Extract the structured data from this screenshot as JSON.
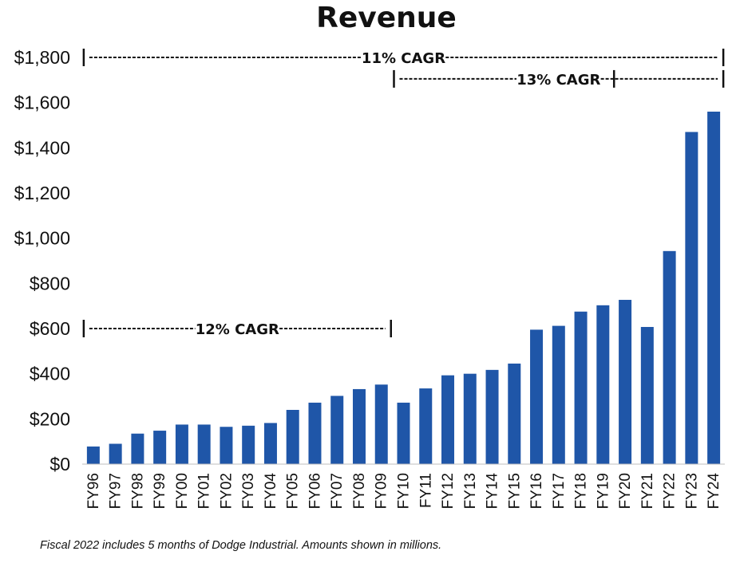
{
  "chart_data": {
    "type": "bar",
    "title": "Revenue",
    "xlabel": "",
    "ylabel": "",
    "ylim": [
      0,
      1800
    ],
    "yticks": [
      0,
      200,
      400,
      600,
      800,
      1000,
      1200,
      1400,
      1600,
      1800
    ],
    "ytick_labels": [
      "$0",
      "$200",
      "$400",
      "$600",
      "$800",
      "$1,000",
      "$1,200",
      "$1,400",
      "$1,600",
      "$1,800"
    ],
    "grid": false,
    "categories": [
      "FY96",
      "FY97",
      "FY98",
      "FY99",
      "FY00",
      "FY01",
      "FY02",
      "FY03",
      "FY04",
      "FY05",
      "FY06",
      "FY07",
      "FY08",
      "FY09",
      "FY10",
      "FY11",
      "FY12",
      "FY13",
      "FY14",
      "FY15",
      "FY16",
      "FY17",
      "FY18",
      "FY19",
      "FY20",
      "FY21",
      "FY22",
      "FY23",
      "FY24"
    ],
    "values": [
      78,
      90,
      135,
      148,
      175,
      175,
      165,
      170,
      182,
      240,
      272,
      302,
      332,
      352,
      272,
      335,
      393,
      400,
      417,
      445,
      595,
      612,
      675,
      703,
      727,
      607,
      943,
      1470,
      1560
    ],
    "bar_color": "#1F56A8",
    "annotations": [
      {
        "label": "11% CAGR",
        "from": "FY96",
        "to": "FY24",
        "y": 1800
      },
      {
        "label": "13% CAGR",
        "from": "FY10",
        "to": "FY24",
        "y": 1705,
        "divider_after": "FY19"
      },
      {
        "label": "12% CAGR",
        "from": "FY96",
        "to": "FY09",
        "y": 600
      }
    ]
  },
  "footnote": "Fiscal 2022 includes 5 months of Dodge Industrial.  Amounts shown in millions."
}
